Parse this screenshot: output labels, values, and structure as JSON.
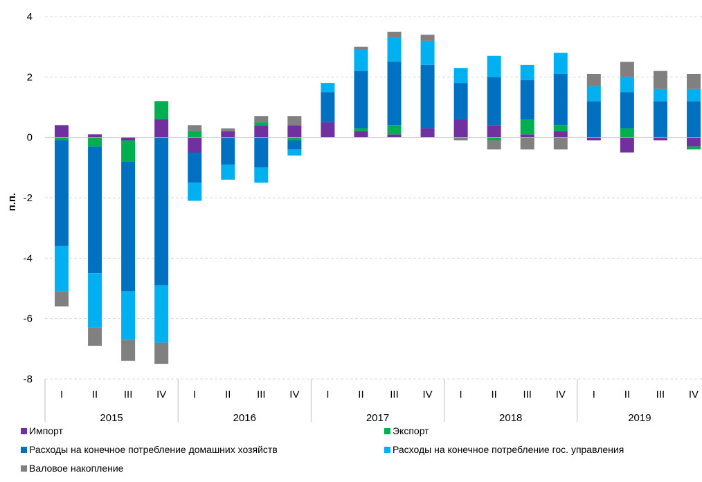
{
  "chart_data": {
    "type": "bar",
    "stacked": true,
    "title": "",
    "xlabel": "",
    "ylabel": "п.п.",
    "ylim": [
      -8,
      4
    ],
    "yticks": [
      4,
      2,
      0,
      -2,
      -4,
      -6,
      -8
    ],
    "grid": true,
    "legend_position": "bottom",
    "categories": [
      "I",
      "II",
      "III",
      "IV",
      "I",
      "II",
      "III",
      "IV",
      "I",
      "II",
      "III",
      "IV",
      "I",
      "II",
      "III",
      "IV",
      "I",
      "II",
      "III",
      "IV"
    ],
    "groups": [
      {
        "label": "2015",
        "count": 4
      },
      {
        "label": "2016",
        "count": 4
      },
      {
        "label": "2017",
        "count": 4
      },
      {
        "label": "2018",
        "count": 4
      },
      {
        "label": "2019",
        "count": 4
      }
    ],
    "series": [
      {
        "name": "Импорт",
        "color": "#7030a0",
        "values": [
          0.4,
          0.1,
          -0.1,
          0.6,
          -0.5,
          0.2,
          0.4,
          0.4,
          0.5,
          0.2,
          0.1,
          0.3,
          0.6,
          0.4,
          0.1,
          0.2,
          -0.1,
          -0.5,
          -0.1,
          -0.3
        ]
      },
      {
        "name": "Экспорт",
        "color": "#00b050",
        "values": [
          -0.1,
          -0.3,
          -0.7,
          0.6,
          0.2,
          0.0,
          0.1,
          -0.1,
          0.0,
          0.1,
          0.3,
          0.0,
          0.0,
          -0.1,
          0.5,
          0.2,
          0.0,
          0.3,
          0.0,
          -0.1
        ]
      },
      {
        "name": "Расходы на конечное потребление домашних хозяйств",
        "color": "#0070c0",
        "values": [
          -3.5,
          -4.2,
          -4.3,
          -4.9,
          -1.0,
          -0.9,
          -1.0,
          -0.3,
          1.0,
          1.9,
          2.1,
          2.1,
          1.2,
          1.6,
          1.3,
          1.7,
          1.2,
          1.2,
          1.2,
          1.2
        ]
      },
      {
        "name": "Расходы на конечное потребление гос. управления",
        "color": "#00b0f0",
        "values": [
          -1.5,
          -1.8,
          -1.6,
          -1.9,
          -0.6,
          -0.5,
          -0.5,
          -0.2,
          0.3,
          0.7,
          0.8,
          0.8,
          0.5,
          0.7,
          0.5,
          0.7,
          0.5,
          0.5,
          0.4,
          0.4
        ]
      },
      {
        "name": "Валовое накопление",
        "color": "#808080",
        "values": [
          -0.5,
          -0.6,
          -0.7,
          -0.7,
          0.2,
          0.1,
          0.2,
          0.3,
          0.0,
          0.1,
          0.2,
          0.2,
          -0.1,
          -0.3,
          -0.4,
          -0.4,
          0.4,
          0.5,
          0.6,
          0.5
        ]
      }
    ]
  }
}
